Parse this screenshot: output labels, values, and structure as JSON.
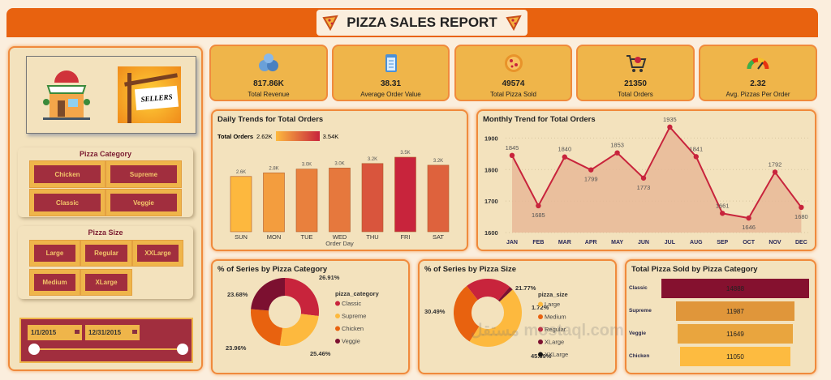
{
  "header": {
    "title": "PIZZA SALES REPORT"
  },
  "colors": {
    "orange": "#e8620f",
    "crimson": "#c8243c",
    "yellow": "#fdb93e",
    "maroon": "#7c1030",
    "gold": "#efb54a",
    "panel": "#f3e2bd"
  },
  "left_panel": {
    "images": [
      "pizza-shop-icon",
      "sellers-sign-image"
    ],
    "sellers_text": "SELLERS",
    "category_slicer": {
      "title": "Pizza Category",
      "options": [
        "Chicken",
        "Supreme",
        "Classic",
        "Veggie"
      ]
    },
    "size_slicer": {
      "title": "Pizza Size",
      "options": [
        "Large",
        "Regular",
        "XXLarge",
        "Medium",
        "XLarge"
      ]
    },
    "date_slicer": {
      "start": "1/1/2015",
      "end": "12/31/2015"
    }
  },
  "kpis": [
    {
      "value": "817.86K",
      "label": "Total Revenue",
      "icon": "money-bags-icon"
    },
    {
      "value": "38.31",
      "label": "Average Order Value",
      "icon": "clipboard-icon"
    },
    {
      "value": "49574",
      "label": "Total Pizza Sold",
      "icon": "pizza-icon"
    },
    {
      "value": "21350",
      "label": "Total Orders",
      "icon": "cart-icon"
    },
    {
      "value": "2.32",
      "label": "Avg. Pizzas Per Order",
      "icon": "gauge-icon"
    }
  ],
  "chart_data": [
    {
      "type": "bar",
      "title": "Daily Trends for Total Orders",
      "xlabel": "Order Day",
      "legend_title": "Total Orders",
      "legend_min": "2.62K",
      "legend_max": "3.54K",
      "categories": [
        "SUN",
        "MON",
        "TUE",
        "WED",
        "THU",
        "FRI",
        "SAT"
      ],
      "values": [
        2624,
        2794,
        2973,
        3024,
        3239,
        3538,
        3158
      ],
      "data_labels": [
        "2.6K",
        "2.8K",
        "3.0K",
        "3.0K",
        "3.2K",
        "3.5K",
        "3.2K"
      ]
    },
    {
      "type": "area",
      "title": "Monthly Trend for Total Orders",
      "categories": [
        "JAN",
        "FEB",
        "MAR",
        "APR",
        "MAY",
        "JUN",
        "JUL",
        "AUG",
        "SEP",
        "OCT",
        "NOV",
        "DEC"
      ],
      "values": [
        1845,
        1685,
        1840,
        1799,
        1853,
        1773,
        1935,
        1841,
        1661,
        1646,
        1792,
        1680
      ],
      "ylim": [
        1600,
        1950
      ],
      "yticks": [
        1600,
        1700,
        1800,
        1900
      ]
    },
    {
      "type": "pie",
      "title": "% of Series by Pizza Category",
      "legend_title": "pizza_category",
      "slices": [
        {
          "name": "Classic",
          "value": 26.91,
          "label": "26.91%",
          "color": "#c8243c"
        },
        {
          "name": "Supreme",
          "value": 25.46,
          "label": "25.46%",
          "color": "#fdb93e"
        },
        {
          "name": "Chicken",
          "value": 23.96,
          "label": "23.96%",
          "color": "#e8620f"
        },
        {
          "name": "Veggie",
          "value": 23.68,
          "label": "23.68%",
          "color": "#7c1030"
        }
      ]
    },
    {
      "type": "pie",
      "title": "% of Series by Pizza Size",
      "legend_title": "pizza_size",
      "slices": [
        {
          "name": "Regular",
          "value": 21.77,
          "label": "21.77%",
          "color": "#c8243c"
        },
        {
          "name": "XLarge",
          "value": 1.72,
          "label": "1.72%",
          "color": "#7c1030"
        },
        {
          "name": "XXLarge",
          "value": 0.13,
          "label": "",
          "color": "#111111"
        },
        {
          "name": "Large",
          "value": 45.89,
          "label": "45.89%",
          "color": "#fdb93e"
        },
        {
          "name": "Medium",
          "value": 30.49,
          "label": "30.49%",
          "color": "#e8620f"
        }
      ],
      "legend": [
        "Large",
        "Medium",
        "Regular",
        "XLarge",
        "XXLarge"
      ]
    },
    {
      "type": "bar",
      "orientation": "horizontal",
      "title": "Total Pizza Sold by Pizza Category",
      "categories": [
        "Classic",
        "Supreme",
        "Veggie",
        "Chicken"
      ],
      "values": [
        14888,
        11987,
        11649,
        11050
      ],
      "colors": [
        "#85112f",
        "#e0963a",
        "#e9a53e",
        "#fdbb40"
      ]
    }
  ],
  "watermark": "مستقل mostaql.com"
}
